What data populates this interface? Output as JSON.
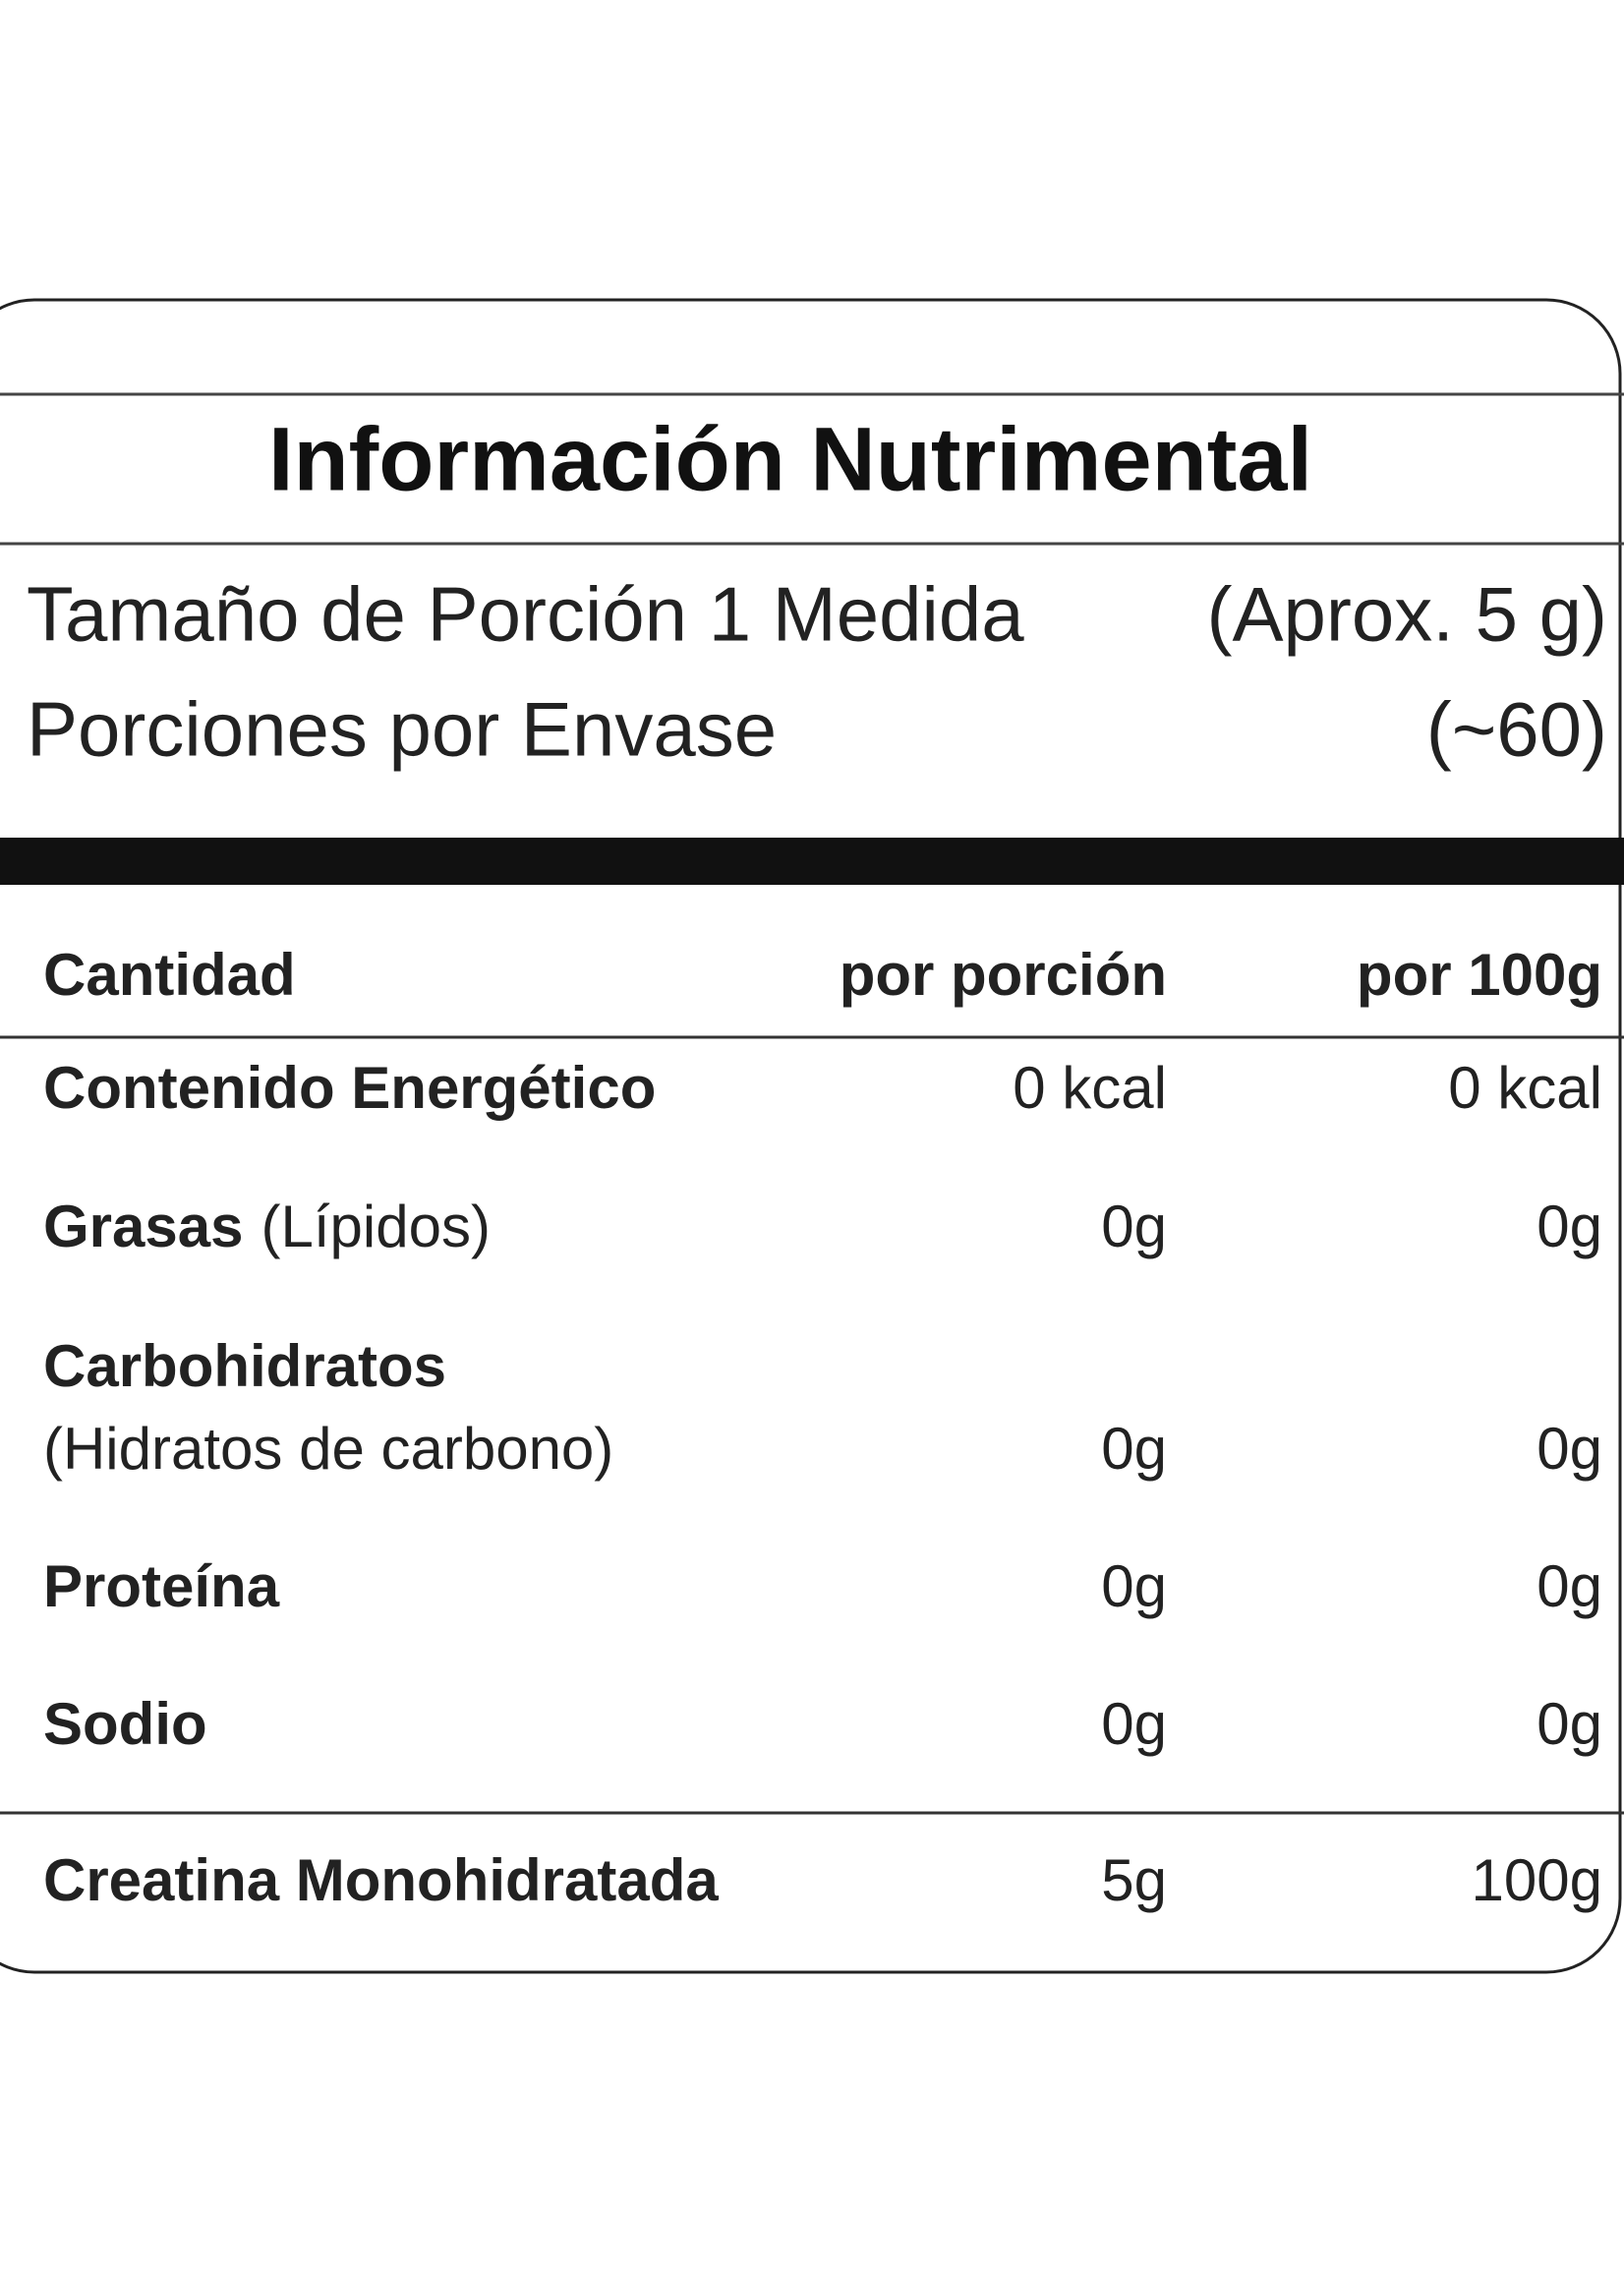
{
  "header": {
    "title": "Información Nutrimental"
  },
  "serving": {
    "rows": [
      {
        "label": "Tamaño de Porción 1 Medida",
        "value": "(Aprox. 5 g)"
      },
      {
        "label": "Porciones por Envase",
        "value": "(~60)"
      }
    ]
  },
  "table": {
    "columns": [
      "Cantidad",
      "por porción",
      "por 100g"
    ],
    "rows": [
      {
        "name": "Contenido Energético",
        "per_serving": "0 kcal",
        "per_100g": "0 kcal"
      },
      {
        "name": "Grasas",
        "qualifier": "(Lípidos)",
        "per_serving": "0g",
        "per_100g": "0g"
      },
      {
        "name": "Carbohidratos",
        "qualifier": "(Hidratos de carbono)",
        "per_serving": "0g",
        "per_100g": "0g"
      },
      {
        "name": "Proteína",
        "per_serving": "0g",
        "per_100g": "0g"
      },
      {
        "name": "Sodio",
        "per_serving": "0g",
        "per_100g": "0g"
      },
      {
        "name": "Creatina Monohidratada",
        "per_serving": "5g",
        "per_100g": "100g"
      }
    ]
  }
}
